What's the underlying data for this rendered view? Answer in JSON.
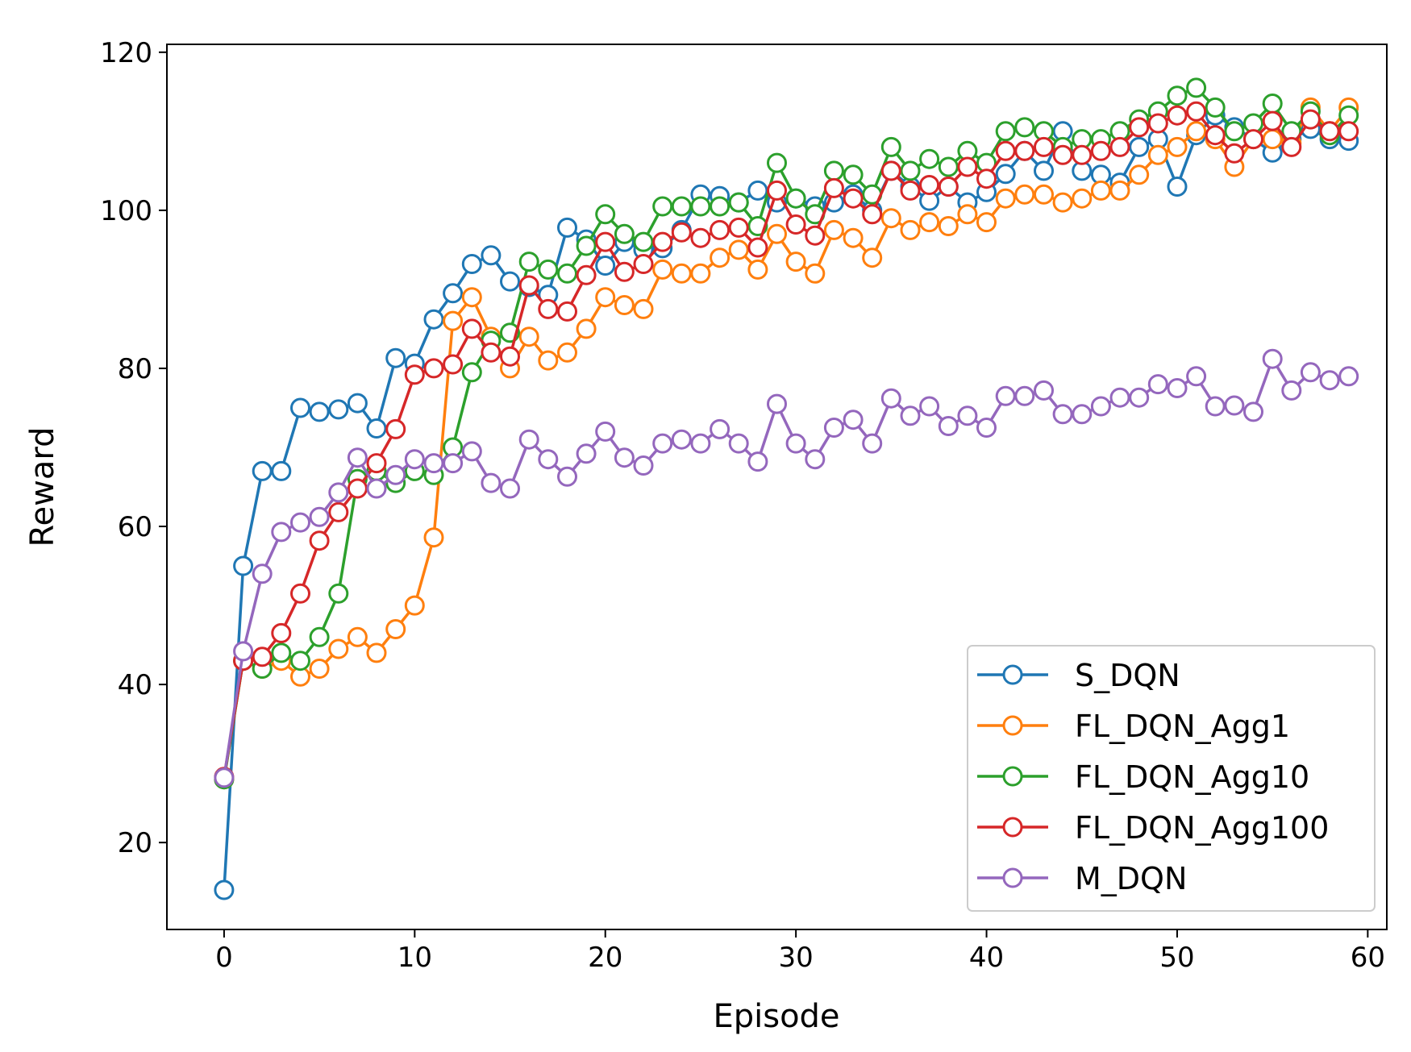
{
  "chart_data": {
    "type": "line",
    "title": "",
    "xlabel": "Episode",
    "ylabel": "Reward",
    "xlim": [
      -3,
      61
    ],
    "ylim": [
      9,
      121
    ],
    "xticks": [
      0,
      10,
      20,
      30,
      40,
      50,
      60
    ],
    "yticks": [
      20,
      40,
      60,
      80,
      100,
      120
    ],
    "grid": false,
    "legend_position": "lower-right",
    "marker": "open-circle",
    "series": [
      {
        "name": "S_DQN",
        "color": "#1f77b4",
        "x": [
          0,
          1,
          2,
          3,
          4,
          5,
          6,
          7,
          8,
          9,
          10,
          11,
          12,
          13,
          14,
          15,
          16,
          17,
          18,
          19,
          20,
          21,
          22,
          23,
          24,
          25,
          26,
          27,
          28,
          29,
          30,
          31,
          32,
          33,
          34,
          35,
          36,
          37,
          38,
          39,
          40,
          41,
          42,
          43,
          44,
          45,
          46,
          47,
          48,
          49,
          50,
          51,
          52,
          53,
          54,
          55,
          56,
          57,
          58,
          59
        ],
        "y": [
          14,
          55,
          67,
          67,
          75,
          74.5,
          74.8,
          75.6,
          72.4,
          81.3,
          80.6,
          86.2,
          89.5,
          93.2,
          94.3,
          91.0,
          90.3,
          89.3,
          97.8,
          96.3,
          93.0,
          96.0,
          95.0,
          95.2,
          97.5,
          102.0,
          101.8,
          101.0,
          102.5,
          101.0,
          101.5,
          100.5,
          101.0,
          102.0,
          100.0,
          105.0,
          103.0,
          101.2,
          103.0,
          101.0,
          102.3,
          104.6,
          107.5,
          105.0,
          110.0,
          105.0,
          104.5,
          103.5,
          108.0,
          109.0,
          103.0,
          109.5,
          112.0,
          110.5,
          109.0,
          107.3,
          109.0,
          110.3,
          109.0,
          108.8
        ]
      },
      {
        "name": "FL_DQN_Agg1",
        "color": "#ff7f0e",
        "x": [
          0,
          1,
          2,
          3,
          4,
          5,
          6,
          7,
          8,
          9,
          10,
          11,
          12,
          13,
          14,
          15,
          16,
          17,
          18,
          19,
          20,
          21,
          22,
          23,
          24,
          25,
          26,
          27,
          28,
          29,
          30,
          31,
          32,
          33,
          34,
          35,
          36,
          37,
          38,
          39,
          40,
          41,
          42,
          43,
          44,
          45,
          46,
          47,
          48,
          49,
          50,
          51,
          52,
          53,
          54,
          55,
          56,
          57,
          58,
          59
        ],
        "y": [
          28,
          43,
          42,
          43,
          41,
          42,
          44.5,
          46,
          44,
          47,
          50,
          58.6,
          86,
          89,
          84,
          80,
          84,
          81,
          82,
          85,
          89,
          88,
          87.5,
          92.5,
          92,
          92,
          94,
          95,
          92.5,
          97,
          93.5,
          92,
          97.5,
          96.5,
          94,
          99,
          97.5,
          98.5,
          98,
          99.5,
          98.5,
          101.5,
          102,
          102,
          101,
          101.5,
          102.5,
          102.5,
          104.5,
          107,
          108,
          110,
          109,
          105.5,
          109,
          109,
          108.5,
          113,
          110,
          113
        ]
      },
      {
        "name": "FL_DQN_Agg10",
        "color": "#2ca02c",
        "x": [
          0,
          1,
          2,
          3,
          4,
          5,
          6,
          7,
          8,
          9,
          10,
          11,
          12,
          13,
          14,
          15,
          16,
          17,
          18,
          19,
          20,
          21,
          22,
          23,
          24,
          25,
          26,
          27,
          28,
          29,
          30,
          31,
          32,
          33,
          34,
          35,
          36,
          37,
          38,
          39,
          40,
          41,
          42,
          43,
          44,
          45,
          46,
          47,
          48,
          49,
          50,
          51,
          52,
          53,
          54,
          55,
          56,
          57,
          58,
          59
        ],
        "y": [
          28,
          43,
          42,
          44,
          43,
          46,
          51.5,
          66,
          67,
          65.5,
          67,
          66.5,
          70,
          79.5,
          83.5,
          84.5,
          93.5,
          92.5,
          92,
          95.5,
          99.5,
          97,
          96,
          100.5,
          100.5,
          100.5,
          100.5,
          101,
          98,
          106,
          101.5,
          99.5,
          105,
          104.5,
          102,
          108,
          105,
          106.5,
          105.5,
          107.5,
          106,
          110,
          110.5,
          110,
          108,
          109,
          109,
          110,
          111.5,
          112.5,
          114.5,
          115.5,
          113,
          110,
          111,
          113.5,
          110,
          112.5,
          109.5,
          112
        ]
      },
      {
        "name": "FL_DQN_Agg100",
        "color": "#d62728",
        "x": [
          0,
          1,
          2,
          3,
          4,
          5,
          6,
          7,
          8,
          9,
          10,
          11,
          12,
          13,
          14,
          15,
          16,
          17,
          18,
          19,
          20,
          21,
          22,
          23,
          24,
          25,
          26,
          27,
          28,
          29,
          30,
          31,
          32,
          33,
          34,
          35,
          36,
          37,
          38,
          39,
          40,
          41,
          42,
          43,
          44,
          45,
          46,
          47,
          48,
          49,
          50,
          51,
          52,
          53,
          54,
          55,
          56,
          57,
          58,
          59
        ],
        "y": [
          28.3,
          43,
          43.5,
          46.5,
          51.5,
          58.2,
          61.8,
          64.8,
          68,
          72.3,
          79.2,
          80,
          80.5,
          85,
          82,
          81.5,
          90.5,
          87.5,
          87.2,
          91.8,
          96,
          92.2,
          93.2,
          96,
          97.2,
          96.5,
          97.5,
          97.8,
          95.3,
          102.5,
          98.2,
          96.8,
          102.8,
          101.5,
          99.5,
          105,
          102.5,
          103.2,
          103,
          105.5,
          104,
          107.5,
          107.5,
          108,
          107,
          107,
          107.5,
          108,
          110.5,
          111,
          112,
          112.5,
          109.5,
          107.2,
          109,
          111.3,
          108,
          111.5,
          110,
          110
        ]
      },
      {
        "name": "M_DQN",
        "color": "#9467bd",
        "x": [
          0,
          1,
          2,
          3,
          4,
          5,
          6,
          7,
          8,
          9,
          10,
          11,
          12,
          13,
          14,
          15,
          16,
          17,
          18,
          19,
          20,
          21,
          22,
          23,
          24,
          25,
          26,
          27,
          28,
          29,
          30,
          31,
          32,
          33,
          34,
          35,
          36,
          37,
          38,
          39,
          40,
          41,
          42,
          43,
          44,
          45,
          46,
          47,
          48,
          49,
          50,
          51,
          52,
          53,
          54,
          55,
          56,
          57,
          58,
          59
        ],
        "y": [
          28.2,
          44.2,
          54,
          59.3,
          60.5,
          61.2,
          64.3,
          68.7,
          64.8,
          66.5,
          68.5,
          68,
          68,
          69.5,
          65.5,
          64.8,
          71,
          68.5,
          66.3,
          69.2,
          72,
          68.7,
          67.7,
          70.5,
          71,
          70.5,
          72.3,
          70.5,
          68.2,
          75.5,
          70.5,
          68.5,
          72.5,
          73.5,
          70.5,
          76.2,
          74,
          75.2,
          72.7,
          74,
          72.5,
          76.5,
          76.5,
          77.2,
          74.2,
          74.2,
          75.2,
          76.3,
          76.3,
          78,
          77.5,
          79,
          75.2,
          75.3,
          74.5,
          81.2,
          77.2,
          79.5,
          78.5,
          79
        ]
      }
    ]
  }
}
